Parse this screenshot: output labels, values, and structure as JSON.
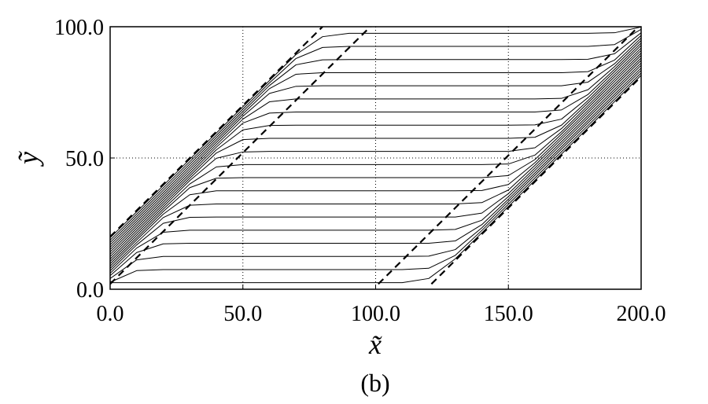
{
  "chart_data": {
    "type": "line",
    "caption": "(b)",
    "x_label": "x̃",
    "y_label": "ỹ",
    "xlim": [
      0,
      200
    ],
    "ylim": [
      0,
      100
    ],
    "xticks": [
      {
        "value": 0,
        "label": "0.0"
      },
      {
        "value": 50,
        "label": "50.0"
      },
      {
        "value": 100,
        "label": "100.0"
      },
      {
        "value": 150,
        "label": "150.0"
      },
      {
        "value": 200,
        "label": "200.0"
      }
    ],
    "yticks": [
      {
        "value": 0,
        "label": "0.0"
      },
      {
        "value": 50,
        "label": "50.0"
      },
      {
        "value": 100,
        "label": "100.0"
      }
    ],
    "grid": true,
    "x": [
      0,
      10,
      20,
      30,
      40,
      50,
      60,
      70,
      80,
      90,
      100,
      110,
      120,
      130,
      140,
      150,
      160,
      170,
      180,
      190,
      200
    ],
    "series": [
      {
        "color": "#000000",
        "values": [
          2.5,
          2.5,
          2.5,
          2.5,
          2.5,
          2.5,
          2.5,
          2.5,
          2.5,
          2.5,
          2.5,
          2.5,
          4.1,
          11.6,
          21.5,
          31.5,
          41.5,
          51.5,
          61.5,
          71.5,
          81.5
        ]
      },
      {
        "color": "#000000",
        "values": [
          2.7,
          7.1,
          7.5,
          7.5,
          7.5,
          7.5,
          7.5,
          7.5,
          7.5,
          7.5,
          7.5,
          7.5,
          8.0,
          12.9,
          22.4,
          32.4,
          42.4,
          52.4,
          62.4,
          72.4,
          82.4
        ]
      },
      {
        "color": "#000000",
        "values": [
          4.1,
          11.2,
          12.5,
          12.5,
          12.5,
          12.5,
          12.5,
          12.5,
          12.5,
          12.5,
          12.5,
          12.5,
          12.6,
          15.1,
          23.4,
          33.4,
          43.4,
          53.4,
          63.4,
          73.4,
          83.4
        ]
      },
      {
        "color": "#000000",
        "values": [
          5.2,
          14.0,
          17.3,
          17.5,
          17.5,
          17.5,
          17.5,
          17.5,
          17.5,
          17.5,
          17.5,
          17.5,
          17.5,
          18.4,
          24.6,
          34.3,
          44.3,
          54.3,
          64.3,
          74.3,
          84.3
        ]
      },
      {
        "color": "#000000",
        "values": [
          6.1,
          15.7,
          21.7,
          22.5,
          22.5,
          22.5,
          22.5,
          22.5,
          22.5,
          22.5,
          22.5,
          22.5,
          22.5,
          22.8,
          26.3,
          35.3,
          45.3,
          55.3,
          65.3,
          75.3,
          85.3
        ]
      },
      {
        "color": "#000000",
        "values": [
          7.0,
          16.9,
          25.1,
          27.4,
          27.5,
          27.5,
          27.5,
          27.5,
          27.5,
          27.5,
          27.5,
          27.5,
          27.5,
          27.5,
          29.0,
          36.4,
          46.2,
          56.2,
          66.2,
          76.2,
          86.2
        ]
      },
      {
        "color": "#000000",
        "values": [
          7.9,
          17.8,
          27.3,
          32.0,
          32.5,
          32.5,
          32.5,
          32.5,
          32.5,
          32.5,
          32.5,
          32.5,
          32.5,
          32.5,
          33.0,
          37.8,
          47.2,
          57.2,
          67.2,
          77.2,
          87.2
        ]
      },
      {
        "color": "#000000",
        "values": [
          8.8,
          18.8,
          28.6,
          36.0,
          37.5,
          37.5,
          37.5,
          37.5,
          37.5,
          37.5,
          37.5,
          37.5,
          37.5,
          37.5,
          37.6,
          39.9,
          48.2,
          58.1,
          68.1,
          78.1,
          88.1
        ]
      },
      {
        "color": "#000000",
        "values": [
          9.7,
          19.6,
          29.6,
          38.7,
          42.3,
          42.5,
          42.5,
          42.5,
          42.5,
          42.5,
          42.5,
          42.5,
          42.5,
          42.5,
          42.5,
          43.3,
          49.4,
          59.1,
          69.1,
          79.1,
          89.1
        ]
      },
      {
        "color": "#000000",
        "values": [
          10.6,
          20.5,
          30.5,
          40.1,
          46.6,
          47.5,
          47.5,
          47.5,
          47.5,
          47.5,
          47.5,
          47.5,
          47.5,
          47.5,
          47.5,
          47.7,
          51.1,
          60.0,
          70.0,
          80.0,
          90.0
        ]
      },
      {
        "color": "#000000",
        "values": [
          11.5,
          21.4,
          31.4,
          41.4,
          49.9,
          52.3,
          52.5,
          52.5,
          52.5,
          52.5,
          52.5,
          52.5,
          52.5,
          52.5,
          52.5,
          52.5,
          53.9,
          61.2,
          71.0,
          81.0,
          91.0
        ]
      },
      {
        "color": "#000000",
        "values": [
          12.4,
          22.3,
          32.3,
          42.3,
          51.9,
          57.0,
          57.5,
          57.5,
          57.5,
          57.5,
          57.5,
          57.5,
          57.5,
          57.5,
          57.5,
          57.5,
          57.9,
          62.5,
          71.9,
          81.9,
          91.9
        ]
      },
      {
        "color": "#000000",
        "values": [
          13.3,
          23.2,
          33.2,
          43.2,
          53.1,
          60.7,
          62.4,
          62.5,
          62.5,
          62.5,
          62.5,
          62.5,
          62.5,
          62.5,
          62.5,
          62.5,
          62.6,
          64.8,
          73.0,
          82.9,
          92.9
        ]
      },
      {
        "color": "#000000",
        "values": [
          14.2,
          24.1,
          34.1,
          44.1,
          54.1,
          63.3,
          67.1,
          67.5,
          67.5,
          67.5,
          67.5,
          67.5,
          67.5,
          67.5,
          67.5,
          67.5,
          67.5,
          68.3,
          74.2,
          83.8,
          93.8
        ]
      },
      {
        "color": "#000000",
        "values": [
          15.1,
          25.0,
          35.0,
          45.0,
          55.0,
          64.8,
          71.4,
          72.5,
          72.5,
          72.5,
          72.5,
          72.5,
          72.5,
          72.5,
          72.5,
          72.5,
          72.5,
          72.7,
          76.0,
          84.8,
          94.8
        ]
      },
      {
        "color": "#000000",
        "values": [
          16.0,
          25.9,
          35.9,
          45.9,
          55.9,
          65.9,
          74.6,
          77.3,
          77.5,
          77.5,
          77.5,
          77.5,
          77.5,
          77.5,
          77.5,
          77.5,
          77.5,
          77.5,
          78.9,
          85.9,
          95.7
        ]
      },
      {
        "color": "#000000",
        "values": [
          16.9,
          26.8,
          36.8,
          46.8,
          56.8,
          66.8,
          76.4,
          81.9,
          82.5,
          82.5,
          82.5,
          82.5,
          82.5,
          82.5,
          82.5,
          82.5,
          82.5,
          82.5,
          82.9,
          87.3,
          96.7
        ]
      },
      {
        "color": "#000000",
        "values": [
          17.8,
          27.7,
          37.7,
          47.7,
          57.7,
          67.7,
          77.6,
          85.5,
          87.4,
          87.5,
          87.5,
          87.5,
          87.5,
          87.5,
          87.5,
          87.5,
          87.5,
          87.5,
          87.6,
          89.7,
          97.7
        ]
      },
      {
        "color": "#000000",
        "values": [
          18.7,
          28.6,
          38.6,
          48.6,
          58.6,
          68.6,
          78.6,
          87.9,
          92.1,
          92.5,
          92.5,
          92.5,
          92.5,
          92.5,
          92.5,
          92.5,
          92.5,
          92.5,
          92.5,
          93.2,
          99.0
        ]
      },
      {
        "color": "#000000",
        "values": [
          19.6,
          29.5,
          39.5,
          49.5,
          59.5,
          69.5,
          79.5,
          89.4,
          96.2,
          97.5,
          97.5,
          97.5,
          97.5,
          97.5,
          97.5,
          97.5,
          97.5,
          97.5,
          97.5,
          97.7,
          99.9
        ]
      },
      {
        "color": "#000000",
        "style": "dashed",
        "x": [
          0,
          80
        ],
        "values": [
          20,
          100
        ]
      },
      {
        "color": "#000000",
        "style": "dashed",
        "x": [
          0,
          98
        ],
        "values": [
          2,
          100
        ]
      },
      {
        "color": "#000000",
        "style": "dashed",
        "x": [
          101,
          199
        ],
        "values": [
          2,
          100
        ]
      },
      {
        "color": "#000000",
        "style": "dashed",
        "x": [
          121,
          200
        ],
        "values": [
          2,
          81
        ]
      }
    ]
  }
}
